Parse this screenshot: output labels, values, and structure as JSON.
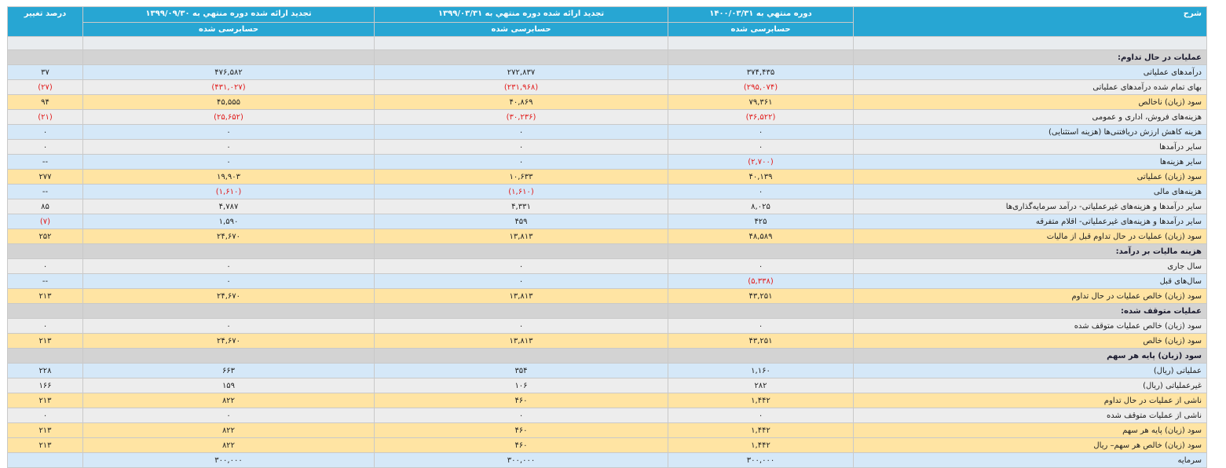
{
  "header": {
    "desc": "شرح",
    "col1": "دوره منتهي به ۱۴۰۰/۰۳/۳۱",
    "col2": "تجدید ارائه شده دوره منتهي به ۱۳۹۹/۰۳/۳۱",
    "col3": "تجدید ارائه شده دوره منتهي به ۱۳۹۹/۰۹/۳۰",
    "col4": "درصد تغییر",
    "audit1": "حسابرسی شده",
    "audit2": "حسابرسی شده",
    "audit3": "حسابرسی شده"
  },
  "rows": [
    {
      "type": "section",
      "label": "عملیات در حال تداوم:"
    },
    {
      "type": "blue",
      "label": "درآمدهای عملیاتی",
      "c1": "۳۷۴,۴۳۵",
      "c2": "۲۷۲,۸۳۷",
      "c3": "۴۷۶,۵۸۲",
      "c4": "۳۷"
    },
    {
      "type": "gray",
      "label": "بهای تمام شده درآمدهای عملیاتی",
      "c1": "(۲۹۵,۰۷۴)",
      "c2": "(۲۳۱,۹۶۸)",
      "c3": "(۴۳۱,۰۲۷)",
      "c4": "(۲۷)"
    },
    {
      "type": "yellow",
      "label": "سود (زیان) ناخالص",
      "c1": "۷۹,۳۶۱",
      "c2": "۴۰,۸۶۹",
      "c3": "۴۵,۵۵۵",
      "c4": "۹۴"
    },
    {
      "type": "gray",
      "label": "هزینه‌های فروش، اداری و عمومی",
      "c1": "(۳۶,۵۲۲)",
      "c2": "(۳۰,۲۳۶)",
      "c3": "(۲۵,۶۵۲)",
      "c4": "(۲۱)"
    },
    {
      "type": "blue",
      "label": "هزینه کاهش ارزش دریافتنی‌ها (هزینه استثنایی)",
      "c1": "۰",
      "c2": "۰",
      "c3": "۰",
      "c4": "۰"
    },
    {
      "type": "gray",
      "label": "سایر درآمدها",
      "c1": "۰",
      "c2": "۰",
      "c3": "۰",
      "c4": "۰"
    },
    {
      "type": "blue",
      "label": "سایر هزینه‌ها",
      "c1": "(۲,۷۰۰)",
      "c2": "۰",
      "c3": "۰",
      "c4": "--"
    },
    {
      "type": "yellow",
      "label": "سود (زیان) عملیاتی",
      "c1": "۴۰,۱۳۹",
      "c2": "۱۰,۶۳۳",
      "c3": "۱۹,۹۰۳",
      "c4": "۲۷۷"
    },
    {
      "type": "blue",
      "label": "هزینه‌های مالی",
      "c1": "۰",
      "c2": "(۱,۶۱۰)",
      "c3": "(۱,۶۱۰)",
      "c4": "--"
    },
    {
      "type": "gray",
      "label": "سایر درآمدها و هزینه‌های غیرعملیاتی- درآمد سرمایه‌گذاری‌ها",
      "c1": "۸,۰۲۵",
      "c2": "۴,۳۳۱",
      "c3": "۴,۷۸۷",
      "c4": "۸۵"
    },
    {
      "type": "blue",
      "label": "سایر درآمدها و هزینه‌های غیرعملیاتی- اقلام متفرقه",
      "c1": "۴۲۵",
      "c2": "۴۵۹",
      "c3": "۱,۵۹۰",
      "c4": "(۷)"
    },
    {
      "type": "yellow",
      "label": "سود (زیان) عملیات در حال تداوم قبل از مالیات",
      "c1": "۴۸,۵۸۹",
      "c2": "۱۳,۸۱۳",
      "c3": "۲۴,۶۷۰",
      "c4": "۲۵۲"
    },
    {
      "type": "section",
      "label": "هزینه مالیات بر درآمد:"
    },
    {
      "type": "gray",
      "label": "سال جاری",
      "c1": "۰",
      "c2": "۰",
      "c3": "۰",
      "c4": "۰"
    },
    {
      "type": "blue",
      "label": "سال‌های قبل",
      "c1": "(۵,۳۳۸)",
      "c2": "۰",
      "c3": "۰",
      "c4": "--"
    },
    {
      "type": "yellow",
      "label": "سود (زیان) خالص عملیات در حال تداوم",
      "c1": "۴۳,۲۵۱",
      "c2": "۱۳,۸۱۳",
      "c3": "۲۴,۶۷۰",
      "c4": "۲۱۳"
    },
    {
      "type": "section",
      "label": "عملیات متوقف شده:"
    },
    {
      "type": "gray",
      "label": "سود (زیان) خالص عملیات متوقف شده",
      "c1": "۰",
      "c2": "۰",
      "c3": "۰",
      "c4": "۰"
    },
    {
      "type": "yellow",
      "label": "سود (زیان) خالص",
      "c1": "۴۳,۲۵۱",
      "c2": "۱۳,۸۱۳",
      "c3": "۲۴,۶۷۰",
      "c4": "۲۱۳"
    },
    {
      "type": "section",
      "label": "سود (زیان) پایه هر سهم"
    },
    {
      "type": "blue",
      "label": "عملیاتی (ریال)",
      "c1": "۱,۱۶۰",
      "c2": "۳۵۴",
      "c3": "۶۶۳",
      "c4": "۲۲۸"
    },
    {
      "type": "gray",
      "label": "غیرعملیاتی (ریال)",
      "c1": "۲۸۲",
      "c2": "۱۰۶",
      "c3": "۱۵۹",
      "c4": "۱۶۶"
    },
    {
      "type": "yellow",
      "label": "ناشی از عملیات در حال تداوم",
      "c1": "۱,۴۴۲",
      "c2": "۴۶۰",
      "c3": "۸۲۲",
      "c4": "۲۱۳"
    },
    {
      "type": "gray",
      "label": "ناشی از عملیات متوقف شده",
      "c1": "۰",
      "c2": "۰",
      "c3": "۰",
      "c4": "۰"
    },
    {
      "type": "yellow",
      "label": "سود (زیان) پایه هر سهم",
      "c1": "۱,۴۴۲",
      "c2": "۴۶۰",
      "c3": "۸۲۲",
      "c4": "۲۱۳"
    },
    {
      "type": "yellow",
      "label": "سود (زیان) خالص هر سهم– ریال",
      "c1": "۱,۴۴۲",
      "c2": "۴۶۰",
      "c3": "۸۲۲",
      "c4": "۲۱۳"
    },
    {
      "type": "blue",
      "label": "سرمایه",
      "c1": "۳۰۰,۰۰۰",
      "c2": "۳۰۰,۰۰۰",
      "c3": "۳۰۰,۰۰۰",
      "c4": ""
    }
  ]
}
